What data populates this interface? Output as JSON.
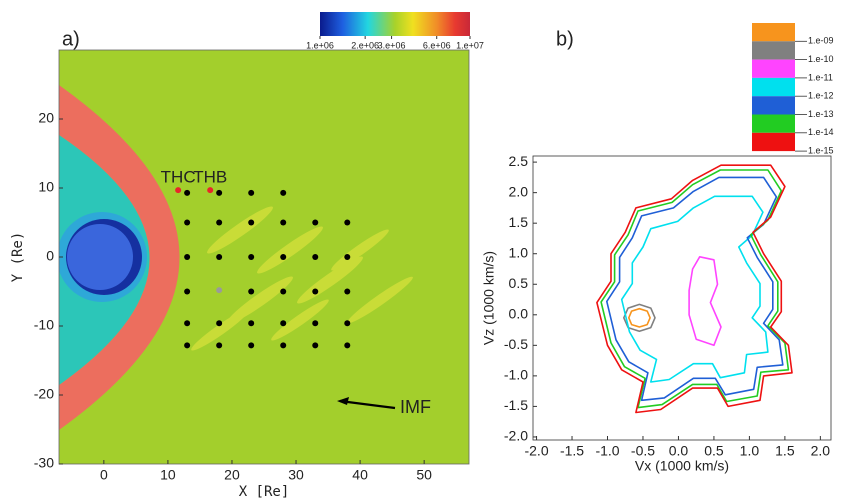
{
  "chart_data": [
    {
      "type": "scatter",
      "label": "a)",
      "xlabel": "X [Re]",
      "ylabel": "Y (Re)",
      "xlim": [
        -7,
        57
      ],
      "ylim": [
        -30,
        30
      ],
      "xticks": [
        0,
        10,
        20,
        30,
        40,
        50
      ],
      "yticks": [
        -30,
        -20,
        -10,
        0,
        10,
        20
      ],
      "series": [
        {
          "color": "#000000",
          "x": [
            13,
            18,
            23,
            28,
            13,
            18,
            23,
            28,
            33,
            38,
            13,
            18,
            23,
            28,
            33,
            38,
            13,
            23,
            28,
            33,
            38,
            13,
            18,
            23,
            28,
            33,
            38,
            13,
            18,
            23,
            28,
            33,
            38
          ],
          "y": [
            9.3,
            9.3,
            9.3,
            9.3,
            5,
            5,
            5,
            5,
            5,
            5,
            0,
            0,
            0,
            0,
            0,
            0,
            -5,
            -5,
            -5,
            -5,
            -5,
            -9.6,
            -9.6,
            -9.6,
            -9.6,
            -9.6,
            -9.6,
            -12.8,
            -12.8,
            -12.8,
            -12.8,
            -12.8,
            -12.8
          ]
        },
        {
          "color": "#e8262a",
          "x": [
            11.6,
            16.6
          ],
          "y": [
            9.7,
            9.7
          ],
          "labels": [
            "THC",
            "THB"
          ]
        },
        {
          "color": "#9a9a9a",
          "x": [
            18
          ],
          "y": [
            -4.8
          ]
        }
      ],
      "annotation": "IMF",
      "colorbar": {
        "clim": [
          1000000,
          10000000
        ],
        "log": true,
        "ticks": [
          {
            "value": 1000000,
            "label": "1.e+06"
          },
          {
            "value": 2000000,
            "label": "2.e+06"
          },
          {
            "value": 3000000,
            "label": "3.e+06"
          },
          {
            "value": 6000000,
            "label": "6.e+06"
          },
          {
            "value": 10000000,
            "label": "1.e+07"
          }
        ]
      }
    },
    {
      "type": "contour",
      "label": "b)",
      "xlabel": "Vx (1000 km/s)",
      "ylabel": "Vz (1000 km/s)",
      "xlim": [
        -2.05,
        2.15
      ],
      "ylim": [
        -2.05,
        2.6
      ],
      "xticks": [
        {
          "value": -2,
          "label": "-2.0"
        },
        {
          "value": -1.5,
          "label": "-1.5"
        },
        {
          "value": -1,
          "label": "-1.0"
        },
        {
          "value": -0.5,
          "label": "-0.5"
        },
        {
          "value": 0,
          "label": "0.0"
        },
        {
          "value": 0.5,
          "label": "0.5"
        },
        {
          "value": 1,
          "label": "1.0"
        },
        {
          "value": 1.5,
          "label": "1.5"
        },
        {
          "value": 2,
          "label": "2.0"
        }
      ],
      "yticks": [
        {
          "value": -2,
          "label": "-2.0"
        },
        {
          "value": -1.5,
          "label": "-1.5"
        },
        {
          "value": -1,
          "label": "-1.0"
        },
        {
          "value": -0.5,
          "label": "-0.5"
        },
        {
          "value": 0,
          "label": "0.0"
        },
        {
          "value": 0.5,
          "label": "0.5"
        },
        {
          "value": 1,
          "label": "1.0"
        },
        {
          "value": 1.5,
          "label": "1.5"
        },
        {
          "value": 2,
          "label": "2.0"
        },
        {
          "value": 2.5,
          "label": "2.5"
        }
      ],
      "series": [
        {
          "name": "1.e-09",
          "color": "#f7941d",
          "x": [
            -0.4,
            -0.44,
            -0.55,
            -0.66,
            -0.7,
            -0.66,
            -0.55,
            -0.44
          ],
          "y": [
            -0.05,
            0.06,
            0.1,
            0.06,
            -0.05,
            -0.16,
            -0.2,
            -0.16
          ]
        },
        {
          "name": "1.e-10",
          "color": "#808080",
          "x": [
            -0.33,
            -0.39,
            -0.55,
            -0.71,
            -0.77,
            -0.71,
            -0.55,
            -0.39
          ],
          "y": [
            -0.05,
            0.11,
            0.17,
            0.11,
            -0.05,
            -0.21,
            -0.27,
            -0.21
          ]
        },
        {
          "name": "1.e-11",
          "color": "#ff44ff",
          "x": [
            0.3,
            0.5,
            0.55,
            0.45,
            0.6,
            0.5,
            0.25,
            0.15,
            0.15,
            0.2
          ],
          "y": [
            0.95,
            0.9,
            0.5,
            0.2,
            -0.2,
            -0.5,
            -0.4,
            0.0,
            0.4,
            0.75
          ]
        },
        {
          "name": "1.e-12",
          "color": "#00e0ee",
          "x": [
            -0.5,
            -0.39,
            -0.01,
            0.21,
            0.51,
            1.04,
            1.19,
            1.04,
            0.85,
            0.96,
            1.15,
            1.15,
            1.04,
            1.23,
            1.26,
            0.96,
            0.93,
            0.59,
            0.48,
            0.21,
            -0.13,
            -0.39,
            -0.31,
            -0.54,
            -0.69,
            -0.8,
            -0.65,
            -0.65
          ],
          "y": [
            1.11,
            1.41,
            1.53,
            1.75,
            1.94,
            1.94,
            1.68,
            1.3,
            1.11,
            0.85,
            0.51,
            0.14,
            -0.05,
            -0.28,
            -0.61,
            -0.65,
            -0.95,
            -1.03,
            -0.8,
            -0.8,
            -1.06,
            -1.1,
            -0.73,
            -0.58,
            -0.28,
            0.25,
            0.51,
            0.85
          ]
        },
        {
          "name": "1.e-13",
          "color": "#1f5fd6",
          "x": [
            -0.65,
            -0.52,
            -0.07,
            0.21,
            0.57,
            1.2,
            1.38,
            1.2,
            0.97,
            1.11,
            1.33,
            1.33,
            1.2,
            1.42,
            1.47,
            1.11,
            1.06,
            0.66,
            0.52,
            0.21,
            -0.2,
            -0.52,
            -0.43,
            -0.7,
            -0.88,
            -1.01,
            -0.83,
            -0.83
          ],
          "y": [
            1.26,
            1.62,
            1.75,
            2.02,
            2.25,
            2.25,
            1.93,
            1.48,
            1.26,
            0.94,
            0.54,
            0.09,
            -0.14,
            -0.41,
            -0.82,
            -0.86,
            -1.22,
            -1.31,
            -1.04,
            -1.04,
            -1.36,
            -1.4,
            -0.95,
            -0.77,
            -0.41,
            0.22,
            0.54,
            0.94
          ]
        },
        {
          "name": "1.e-14",
          "color": "#22cc22",
          "x": [
            -0.71,
            -0.57,
            -0.09,
            0.2,
            0.59,
            1.26,
            1.45,
            1.26,
            1.02,
            1.16,
            1.4,
            1.4,
            1.26,
            1.5,
            1.55,
            1.16,
            1.11,
            0.68,
            0.54,
            0.2,
            -0.23,
            -0.57,
            -0.47,
            -0.76,
            -0.95,
            -1.09,
            -0.9,
            -0.9
          ],
          "y": [
            1.31,
            1.7,
            1.84,
            2.13,
            2.37,
            2.37,
            2.03,
            1.55,
            1.31,
            0.98,
            0.54,
            0.06,
            -0.18,
            -0.46,
            -0.9,
            -0.94,
            -1.33,
            -1.42,
            -1.14,
            -1.14,
            -1.47,
            -1.52,
            -1.04,
            -0.85,
            -0.46,
            0.21,
            0.54,
            0.98
          ]
        },
        {
          "name": "1.e-15",
          "color": "#ee1111",
          "x": [
            -0.75,
            -0.6,
            -0.1,
            0.2,
            0.6,
            1.3,
            1.5,
            1.3,
            1.05,
            1.2,
            1.45,
            1.45,
            1.3,
            1.55,
            1.6,
            1.2,
            1.15,
            0.7,
            0.55,
            0.2,
            -0.25,
            -0.6,
            -0.5,
            -0.8,
            -1.0,
            -1.15,
            -0.95,
            -0.95
          ],
          "y": [
            1.35,
            1.75,
            1.9,
            2.2,
            2.45,
            2.45,
            2.1,
            1.6,
            1.35,
            1.0,
            0.55,
            0.05,
            -0.2,
            -0.5,
            -0.95,
            -1.0,
            -1.4,
            -1.5,
            -1.2,
            -1.2,
            -1.55,
            -1.6,
            -1.1,
            -0.9,
            -0.5,
            0.2,
            0.55,
            1.0
          ]
        }
      ]
    }
  ]
}
